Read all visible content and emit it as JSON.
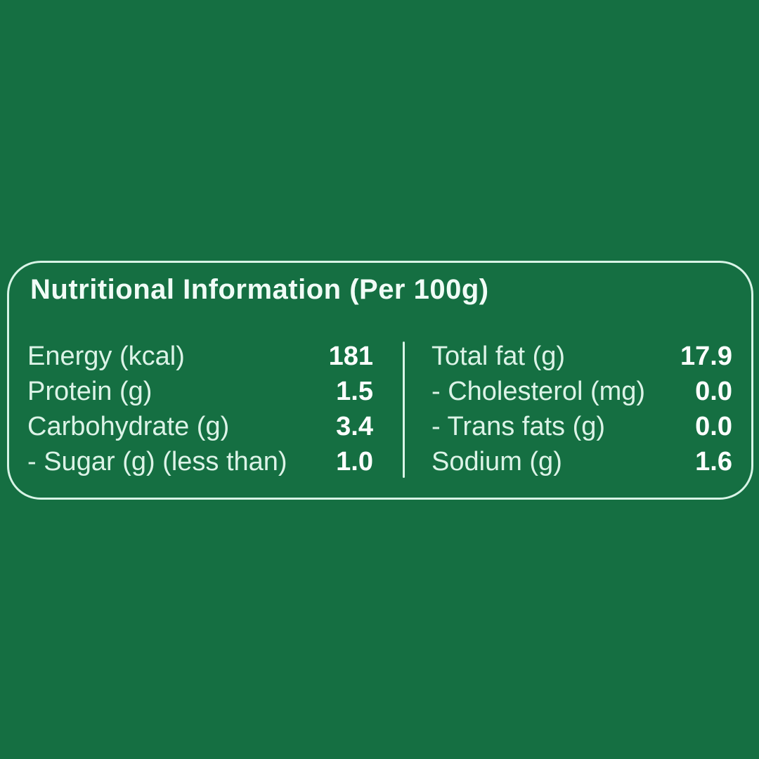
{
  "colors": {
    "background": "#156F42",
    "panel_border": "#D8F4E6",
    "label_text": "#DCF3E7",
    "value_text": "#FCFFFE",
    "title_text": "#F0FCF6"
  },
  "panel": {
    "title": "Nutritional Information (Per 100g)",
    "serving_basis": "Per 100g",
    "left_column": {
      "rows": [
        {
          "label": "Energy (kcal)",
          "value": "181"
        },
        {
          "label": "Protein (g)",
          "value": "1.5"
        },
        {
          "label": "Carbohydrate (g)",
          "value": "3.4"
        },
        {
          "label": "- Sugar (g) (less than)",
          "value": "1.0"
        }
      ]
    },
    "right_column": {
      "rows": [
        {
          "label": "Total fat (g)",
          "value": "17.9"
        },
        {
          "label": "- Cholesterol (mg)",
          "value": "0.0"
        },
        {
          "label": "- Trans fats (g)",
          "value": "0.0"
        },
        {
          "label": "Sodium (g)",
          "value": "1.6"
        }
      ]
    }
  }
}
